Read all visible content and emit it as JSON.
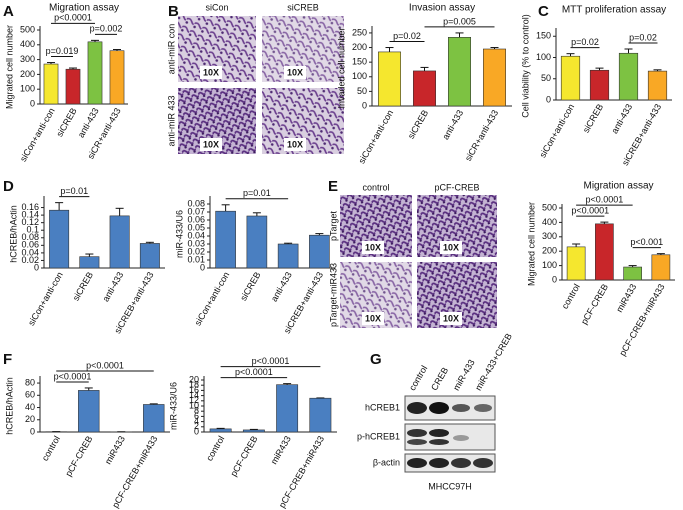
{
  "panel_labels": [
    "A",
    "B",
    "C",
    "D",
    "E",
    "F",
    "G"
  ],
  "micrographs_B": {
    "columns": [
      "siCon",
      "siCREB"
    ],
    "rows": [
      "anti-miR con",
      "anti-miR 433"
    ],
    "magnification": [
      "10X",
      "10X",
      "10X",
      "10X"
    ]
  },
  "micrographs_E": {
    "columns": [
      "control",
      "pCF-CREB"
    ],
    "rows": [
      "pTarget",
      "pTarget-miR433"
    ],
    "magnification": [
      "10X",
      "10X",
      "10X",
      "10X"
    ]
  },
  "western_blot_G": {
    "lanes": [
      "control",
      "CREB",
      "miR-433",
      "miR-433+CREB"
    ],
    "rows": [
      "hCREB1",
      "p-hCREB1",
      "β-actin"
    ],
    "cell_line": "MHCC97H"
  },
  "chart_data": [
    {
      "type": "bar",
      "title": "Migration assay",
      "y_label": "Migrated cell number",
      "categories": [
        "siCon+anti-con",
        "siCREB",
        "anti-433",
        "siCR+anti-433"
      ],
      "values": [
        270,
        235,
        420,
        360
      ],
      "errors": [
        10,
        8,
        10,
        8
      ],
      "colors": [
        "#f5e72e",
        "#c8262a",
        "#7dc242",
        "#f9a825"
      ],
      "ylim": [
        0,
        500
      ],
      "yticks": [
        0,
        100,
        200,
        300,
        400,
        500
      ],
      "annotations": [
        {
          "text": "p=0.019",
          "from": 0,
          "to": 1
        },
        {
          "text": "p=0.002",
          "from": 2,
          "to": 3
        },
        {
          "text": "p<0.0001",
          "from": 0,
          "to": 2
        }
      ]
    },
    {
      "type": "bar",
      "title": "Invasion assay",
      "y_label": "Invaded cell number",
      "categories": [
        "siCon+anti-con",
        "siCREB",
        "anti-433",
        "siCR+anti-433"
      ],
      "values": [
        185,
        120,
        235,
        195
      ],
      "errors": [
        15,
        12,
        15,
        5
      ],
      "colors": [
        "#f5e72e",
        "#c8262a",
        "#7dc242",
        "#f9a825"
      ],
      "ylim": [
        0,
        260
      ],
      "yticks": [
        0,
        50,
        100,
        150,
        200,
        250
      ],
      "annotations": [
        {
          "text": "p=0.02",
          "from": 0,
          "to": 1
        },
        {
          "text": "p=0.005",
          "from": 1,
          "to": 3
        }
      ]
    },
    {
      "type": "bar",
      "title": "MTT proliferation assay",
      "y_label": "Cell viability (% to control)",
      "categories": [
        "siCon+anti-con",
        "siCREB",
        "anti-433",
        "siCREB+anti-433"
      ],
      "values": [
        103,
        70,
        110,
        68
      ],
      "errors": [
        6,
        5,
        10,
        3
      ],
      "colors": [
        "#f5e72e",
        "#c8262a",
        "#7dc242",
        "#f9a825"
      ],
      "ylim": [
        0,
        160
      ],
      "yticks": [
        0,
        50,
        100,
        150
      ],
      "annotations": [
        {
          "text": "p=0.02",
          "from": 0,
          "to": 1
        },
        {
          "text": "p=0.02",
          "from": 2,
          "to": 3
        }
      ]
    },
    {
      "type": "bar",
      "y_label": "hCREB/hActin",
      "categories": [
        "siCon+anti-con",
        "siCREB",
        "anti-433",
        "siCREB+anti-433"
      ],
      "values": [
        0.153,
        0.03,
        0.138,
        0.065
      ],
      "errors": [
        0.02,
        0.007,
        0.02,
        0.003
      ],
      "color": "#4a7fc1",
      "ylim": [
        0,
        0.18
      ],
      "yticks": [
        0,
        0.02,
        0.04,
        0.06,
        0.08,
        0.1,
        0.12,
        0.14,
        0.16
      ],
      "annotations": [
        {
          "text": "p=0.01",
          "from": 0,
          "to": 1
        }
      ]
    },
    {
      "type": "bar",
      "y_label": "miR-433/U6",
      "categories": [
        "siCon+anti-con",
        "siCREB",
        "anti-433",
        "siCREB+anti-433"
      ],
      "values": [
        0.071,
        0.065,
        0.03,
        0.041
      ],
      "errors": [
        0.008,
        0.004,
        0.001,
        0.002
      ],
      "color": "#4a7fc1",
      "ylim": [
        0,
        0.085
      ],
      "yticks": [
        0,
        0.01,
        0.02,
        0.03,
        0.04,
        0.05,
        0.06,
        0.07,
        0.08
      ],
      "annotations": [
        {
          "text": "p=0.01",
          "from": 0,
          "to": 2
        }
      ]
    },
    {
      "type": "bar",
      "title": "Migration assay",
      "y_label": "Migrated cell number",
      "categories": [
        "control",
        "pCF-CREB",
        "miR433",
        "pCF-CREB+miR433"
      ],
      "values": [
        230,
        390,
        90,
        175
      ],
      "errors": [
        20,
        12,
        10,
        8
      ],
      "colors": [
        "#f5e72e",
        "#c8262a",
        "#7dc242",
        "#f9a825"
      ],
      "ylim": [
        0,
        500
      ],
      "yticks": [
        0,
        100,
        200,
        300,
        400,
        500
      ],
      "annotations": [
        {
          "text": "p<0.0001",
          "from": 0,
          "to": 1
        },
        {
          "text": "p<0.001",
          "from": 2,
          "to": 3
        },
        {
          "text": "p<0.0001",
          "from": 0,
          "to": 2
        }
      ]
    },
    {
      "type": "bar",
      "y_label": "hCREB/hActin",
      "categories": [
        "control",
        "pCF-CREB",
        "miR433",
        "pCF-CREB+miR433"
      ],
      "values": [
        0.5,
        68,
        0.3,
        45
      ],
      "errors": [
        0.1,
        4,
        0.1,
        1
      ],
      "color": "#4a7fc1",
      "ylim": [
        0,
        85
      ],
      "yticks": [
        0,
        20,
        40,
        60,
        80
      ],
      "annotations": [
        {
          "text": "p<0.0001",
          "from": 0,
          "to": 1
        },
        {
          "text": "p<0.0001",
          "from": 0,
          "to": 3
        }
      ]
    },
    {
      "type": "bar",
      "y_label": "miR-433/U6",
      "categories": [
        "control",
        "pCF-CREB",
        "miR433",
        "pCF-CREB+miR433"
      ],
      "values": [
        1.2,
        0.8,
        18.2,
        13
      ],
      "errors": [
        0.2,
        0.2,
        0.4,
        0.1
      ],
      "color": "#4a7fc1",
      "ylim": [
        0,
        20
      ],
      "yticks": [
        0,
        2,
        4,
        6,
        8,
        10,
        12,
        14,
        16,
        18,
        20
      ],
      "annotations": [
        {
          "text": "p<0.0001",
          "from": 0,
          "to": 2
        },
        {
          "text": "p<0.0001",
          "from": 0,
          "to": 3
        }
      ]
    }
  ]
}
